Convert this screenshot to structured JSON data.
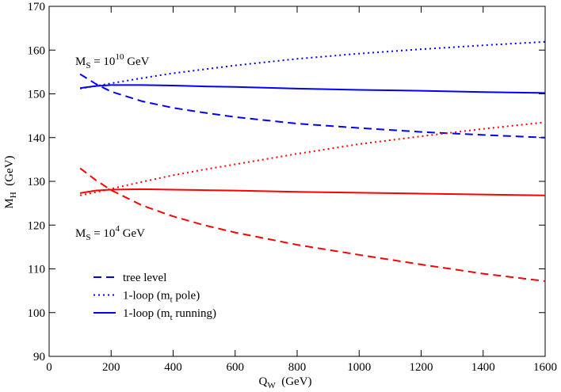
{
  "chart_data": {
    "type": "line",
    "x_label": {
      "main": "Q",
      "sub": "W",
      "rest": "  (GeV)"
    },
    "y_label": {
      "main": "M",
      "sub": "H",
      "rest": "  (GeV)"
    },
    "x": [
      100,
      150,
      200,
      300,
      400,
      500,
      600,
      800,
      1000,
      1200,
      1400,
      1600
    ],
    "series": [
      {
        "name": {
          "main": "tree level"
        },
        "color": "#0000ff",
        "dash": "dashed",
        "values": [
          154.5,
          152.3,
          150.5,
          148.3,
          146.8,
          145.7,
          144.7,
          143.2,
          142.2,
          141.3,
          140.6,
          140.0
        ]
      },
      {
        "name": {
          "main": "1-loop  (m",
          "sub": "t",
          "rest": " pole)"
        },
        "color": "#0000ff",
        "dash": "dotted",
        "values": [
          151.2,
          151.8,
          152.4,
          153.6,
          154.7,
          155.6,
          156.5,
          158.0,
          159.2,
          160.2,
          161.1,
          161.9
        ]
      },
      {
        "name": {
          "main": "1-loop  (m",
          "sub": "t",
          "rest": " running)"
        },
        "color": "#0000ff",
        "dash": "solid",
        "values": [
          151.3,
          151.8,
          152.0,
          152.0,
          151.9,
          151.7,
          151.6,
          151.2,
          150.9,
          150.7,
          150.4,
          150.2
        ]
      },
      {
        "color": "#ff0000",
        "dash": "dashed",
        "values": [
          133.0,
          130.3,
          128.0,
          124.5,
          122.0,
          120.0,
          118.3,
          115.5,
          113.2,
          111.0,
          108.9,
          107.2
        ]
      },
      {
        "color": "#ff0000",
        "dash": "dotted",
        "values": [
          126.8,
          127.5,
          128.3,
          129.9,
          131.4,
          132.7,
          133.9,
          136.3,
          138.5,
          140.3,
          142.0,
          143.5
        ]
      },
      {
        "color": "#ff0000",
        "dash": "solid",
        "values": [
          127.3,
          127.9,
          128.1,
          128.2,
          128.1,
          128.0,
          127.9,
          127.6,
          127.4,
          127.2,
          127.0,
          126.8
        ]
      }
    ],
    "annotations": [
      {
        "main": "M",
        "sub": "S",
        "mid": " = 10",
        "sup": "10",
        "rest": " GeV"
      },
      {
        "main": "M",
        "sub": "S",
        "mid": " = 10",
        "sup": "4",
        "rest": " GeV"
      }
    ],
    "xlim": [
      0,
      1600
    ],
    "xticks": [
      0,
      200,
      400,
      600,
      800,
      1000,
      1200,
      1400,
      1600
    ],
    "ylim": [
      90,
      170
    ],
    "yticks": [
      90,
      100,
      110,
      120,
      130,
      140,
      150,
      160,
      170
    ],
    "legend": "lower left"
  }
}
